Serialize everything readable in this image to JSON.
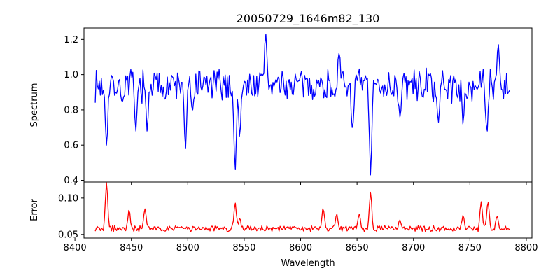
{
  "chart_data": [
    {
      "type": "line",
      "title": "20050729_1646m82_130",
      "xlabel": "",
      "ylabel": "Spectrum",
      "xlim": [
        8408,
        8805
      ],
      "ylim": [
        0.39,
        1.265
      ],
      "xticks": [
        8400,
        8450,
        8500,
        8550,
        8600,
        8650,
        8700,
        8750,
        8800
      ],
      "yticks": [
        0.4,
        0.6,
        0.8,
        1.0,
        1.2
      ],
      "ytick_labels": [
        "0.4",
        "0.6",
        "0.8",
        "1.0",
        "1.2"
      ],
      "show_x_tick_labels": false,
      "grid": false,
      "series": [
        {
          "color": "#0000ff",
          "x_start": 8418,
          "x_end": 8786,
          "features": [
            {
              "x": 8428,
              "y": 0.6
            },
            {
              "x": 8442,
              "y": 0.85
            },
            {
              "x": 8454,
              "y": 0.68
            },
            {
              "x": 8464,
              "y": 0.68
            },
            {
              "x": 8498,
              "y": 0.58
            },
            {
              "x": 8504,
              "y": 0.8
            },
            {
              "x": 8542,
              "y": 0.46
            },
            {
              "x": 8546,
              "y": 0.65
            },
            {
              "x": 8569,
              "y": 1.23
            },
            {
              "x": 8634,
              "y": 1.12
            },
            {
              "x": 8646,
              "y": 0.7
            },
            {
              "x": 8662,
              "y": 0.43
            },
            {
              "x": 8688,
              "y": 0.76
            },
            {
              "x": 8722,
              "y": 0.73
            },
            {
              "x": 8744,
              "y": 0.72
            },
            {
              "x": 8765,
              "y": 0.68
            },
            {
              "x": 8775,
              "y": 1.17
            }
          ]
        }
      ]
    },
    {
      "type": "line",
      "title": "",
      "xlabel": "Wavelength",
      "ylabel": "Error",
      "xlim": [
        8408,
        8805
      ],
      "ylim": [
        0.045,
        0.122
      ],
      "xticks": [
        8400,
        8450,
        8500,
        8550,
        8600,
        8650,
        8700,
        8750,
        8800
      ],
      "xtick_labels": [
        "8400",
        "8450",
        "8500",
        "8550",
        "8600",
        "8650",
        "8700",
        "8750",
        "8800"
      ],
      "yticks": [
        0.05,
        0.1
      ],
      "ytick_labels": [
        "0.05",
        "0.10"
      ],
      "show_x_tick_labels": true,
      "grid": false,
      "series": [
        {
          "color": "#ff0000",
          "x_start": 8418,
          "x_end": 8786,
          "features": [
            {
              "x": 8428,
              "y": 0.121
            },
            {
              "x": 8448,
              "y": 0.083
            },
            {
              "x": 8462,
              "y": 0.085
            },
            {
              "x": 8542,
              "y": 0.093
            },
            {
              "x": 8546,
              "y": 0.072
            },
            {
              "x": 8620,
              "y": 0.085
            },
            {
              "x": 8632,
              "y": 0.078
            },
            {
              "x": 8652,
              "y": 0.078
            },
            {
              "x": 8662,
              "y": 0.108
            },
            {
              "x": 8688,
              "y": 0.07
            },
            {
              "x": 8744,
              "y": 0.076
            },
            {
              "x": 8760,
              "y": 0.095
            },
            {
              "x": 8766,
              "y": 0.094
            },
            {
              "x": 8774,
              "y": 0.075
            }
          ]
        }
      ]
    }
  ]
}
